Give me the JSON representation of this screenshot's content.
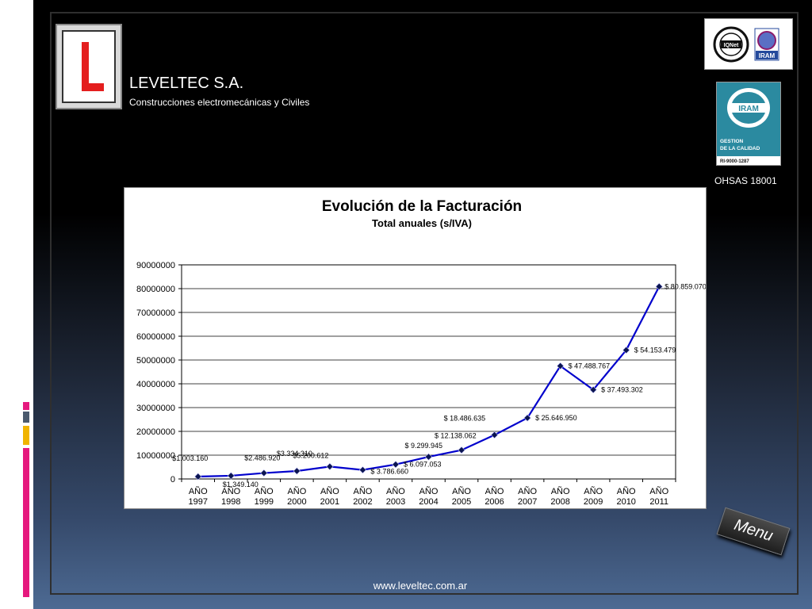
{
  "header": {
    "company": "LEVELTEC S.A.",
    "tagline": "Construcciones electromecánicas y Civiles",
    "logo_letter": "L"
  },
  "certs": {
    "badge1_label": "IQNet",
    "badge2_label": "IRAM",
    "iram_label": "IRAM",
    "iram_line1": "GESTION",
    "iram_line2": "DE LA CALIDAD",
    "iram_code": "RI-9000-1287",
    "ohsas": "OHSAS 18001"
  },
  "menu_label": "Menu",
  "footer_url": "www.leveltec.com.ar",
  "colors": {
    "line": "#0000cc",
    "marker": "#0a1450",
    "accent_pink": "#e5197e",
    "accent_gold": "#f0b400",
    "accent_slate": "#4b5a6e"
  },
  "chart_data": {
    "type": "line",
    "title": "Evolución de la Facturación",
    "subtitle": "Total anuales (s/IVA)",
    "xlabel": "",
    "ylabel": "",
    "ylim": [
      0,
      90000000
    ],
    "yticks": [
      "0",
      "10000000",
      "20000000",
      "30000000",
      "40000000",
      "50000000",
      "60000000",
      "70000000",
      "80000000",
      "90000000"
    ],
    "grid": true,
    "categories": [
      [
        "AÑO",
        "1997"
      ],
      [
        "AÑO",
        "1998"
      ],
      [
        "AÑO",
        "1999"
      ],
      [
        "AÑO",
        "2000"
      ],
      [
        "AÑO",
        "2001"
      ],
      [
        "AÑO",
        "2002"
      ],
      [
        "AÑO",
        "2003"
      ],
      [
        "AÑO",
        "2004"
      ],
      [
        "AÑO",
        "2005"
      ],
      [
        "AÑO",
        "2006"
      ],
      [
        "AÑO",
        "2007"
      ],
      [
        "AÑO",
        "2008"
      ],
      [
        "AÑO",
        "2009"
      ],
      [
        "AÑO",
        "2010"
      ],
      [
        "AÑO",
        "2011"
      ]
    ],
    "values": [
      1003160,
      1349140,
      2486920,
      3334310,
      5200612,
      3786660,
      6097053,
      9299945,
      12138062,
      18486635,
      25646950,
      47488767,
      37493302,
      54153479,
      80859070
    ],
    "labels": [
      "$1.003.160",
      "$1.349.140",
      "$2.486.920",
      "$3.334.310",
      "$5.200.612",
      "$ 3.786.660",
      "$ 6.097.053",
      "$ 9.299.945",
      "$ 12.138.062",
      "$ 18.486.635",
      "$ 25.646.950",
      "$ 47.488.767",
      "$ 37.493.302",
      "$ 54.153.479",
      "$ 80.859.070"
    ]
  }
}
